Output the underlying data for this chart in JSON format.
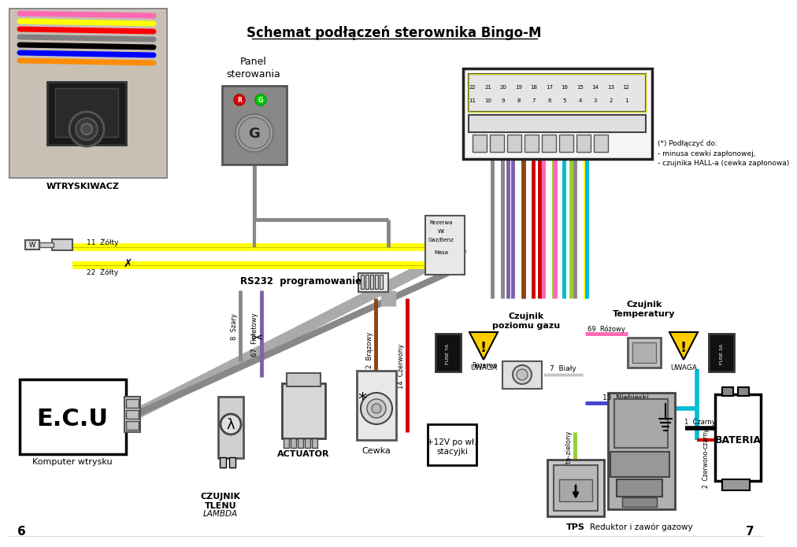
{
  "title": "Schemat podłączeń sterownika Bingo-M",
  "bg_color": "#ffffff",
  "page_numbers": [
    "6",
    "7"
  ],
  "labels": {
    "wtryskiwacz": "WTRYSKIWACZ",
    "panel_sterowania": "Panel\nsterowania",
    "rs232": "RS232  programowanie",
    "ecu": "E.C.U",
    "komputer": "Komputer wtrysku",
    "czujnik_tlenu": "CZUJNIK\nTLENU",
    "lambda": "LAMBDA",
    "actuator": "ACTUATOR",
    "cewka": "Cewka",
    "plus12v": "+12V po wł.\nstacyjki",
    "czujnik_poziomu": "Czujnik\npoziomu gazu",
    "tps": "TPS",
    "reduktor": "Reduktor i zawór gazowy",
    "czujnik_temp": "Czujnik\nTemperatury",
    "bateria": "BATERIA",
    "uwaga1": "UWAGA",
    "uwaga2": "UWAGA",
    "rezerwua": "Rezerwa",
    "wi": "WI",
    "gaz_benz": "Gaz/Benz",
    "masa": "Masa",
    "podlaczyc": "(*) Podłączyć do:\n- minusa cewki zapłonowej,\n- czujnika HALL-a (cewka zapłonowa)",
    "rezerwab": "Rezerwa",
    "bialy7": "7  Biały",
    "niebieski13": "13  Niebieski",
    "zolty11": "11  Żółty",
    "zolty22": "22  Żółty",
    "szary8": "8  Szary",
    "fioletowy67": "67  Fioletowy",
    "brazowy2": "2  Brązowy",
    "czerwony14": "14  Czerwony",
    "rozowy69": "69  Różowy",
    "zolto_zielony3": "3  Żółto-zielony",
    "czarny1": "1  Czarny",
    "czerwono_czarny2": "2  Czerwono-czarny",
    "fuse_7a": "FUSE 7A",
    "fuse_3a": "FUSE 3A",
    "g_label": "G"
  },
  "colors": {
    "yellow": "#ffff00",
    "gray": "#808080",
    "light_gray": "#c0c0c0",
    "dark_gray": "#404040",
    "black": "#000000",
    "white": "#ffffff",
    "red": "#cc0000",
    "blue": "#0000cc",
    "green": "#00aa00",
    "brown": "#8b4513",
    "pink": "#ff69b4",
    "cyan": "#00bcd4",
    "yellow_green": "#9acd32",
    "orange": "#ff8c00",
    "purple": "#800080",
    "dark_red": "#8b0000"
  }
}
